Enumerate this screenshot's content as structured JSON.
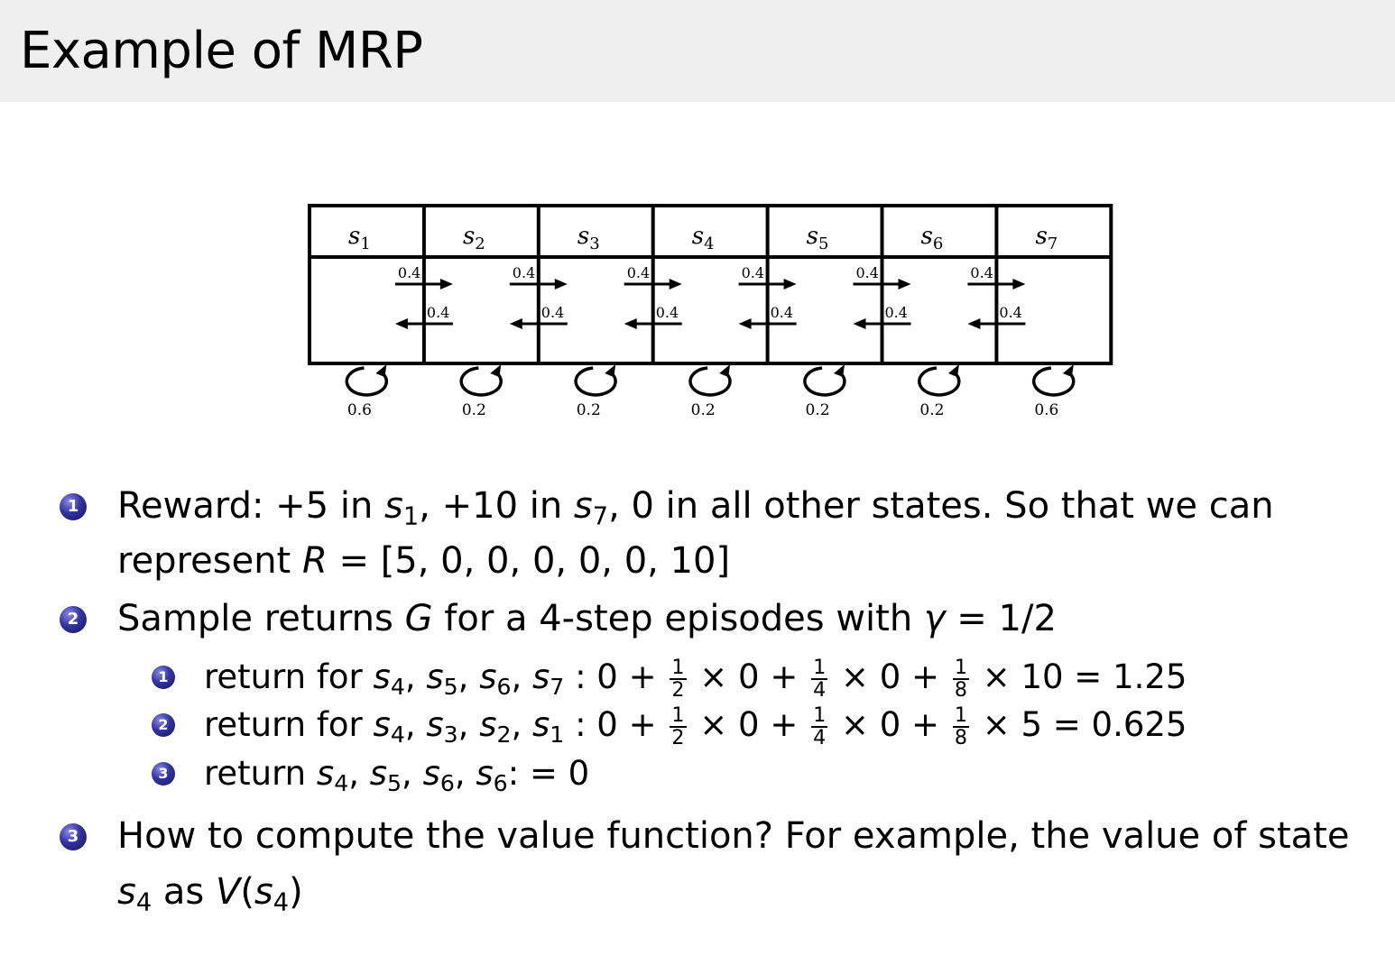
{
  "header": {
    "title": "Example of MRP"
  },
  "diagram": {
    "states": [
      "s1",
      "s2",
      "s3",
      "s4",
      "s5",
      "s6",
      "s7"
    ],
    "forward_prob": "0.4",
    "backward_prob": "0.4",
    "self_loop_probs": [
      "0.6",
      "0.2",
      "0.2",
      "0.2",
      "0.2",
      "0.2",
      "0.6"
    ]
  },
  "bullet_color": "#2a2a8a",
  "items": [
    {
      "number": "1",
      "lines": [
        [
          {
            "t": "Reward: +5 in "
          },
          {
            "m": "s"
          },
          {
            "s": "1"
          },
          {
            "t": ", +10 in "
          },
          {
            "m": "s"
          },
          {
            "s": "7"
          },
          {
            "t": ", 0 in all other states. So that we can"
          }
        ],
        [
          {
            "t": "represent "
          },
          {
            "m": "R"
          },
          {
            "t": " = [5, 0, 0, 0, 0, 0, 10]"
          }
        ]
      ]
    },
    {
      "number": "2",
      "lines": [
        [
          {
            "t": "Sample returns "
          },
          {
            "m": "G"
          },
          {
            "t": " for a 4-step episodes with "
          },
          {
            "m": "γ"
          },
          {
            "t": " = 1/2"
          }
        ]
      ],
      "subitems": [
        {
          "number": "1",
          "line": [
            {
              "t": "return for "
            },
            {
              "m": "s"
            },
            {
              "s": "4"
            },
            {
              "t": ", "
            },
            {
              "m": "s"
            },
            {
              "s": "5"
            },
            {
              "t": ", "
            },
            {
              "m": "s"
            },
            {
              "s": "6"
            },
            {
              "t": ", "
            },
            {
              "m": "s"
            },
            {
              "s": "7"
            },
            {
              "t": " : 0 + "
            },
            {
              "f": [
                "1",
                "2"
              ]
            },
            {
              "t": " × 0 + "
            },
            {
              "f": [
                "1",
                "4"
              ]
            },
            {
              "t": " × 0 + "
            },
            {
              "f": [
                "1",
                "8"
              ]
            },
            {
              "t": " × 10 = 1.25"
            }
          ]
        },
        {
          "number": "2",
          "line": [
            {
              "t": "return for "
            },
            {
              "m": "s"
            },
            {
              "s": "4"
            },
            {
              "t": ", "
            },
            {
              "m": "s"
            },
            {
              "s": "3"
            },
            {
              "t": ", "
            },
            {
              "m": "s"
            },
            {
              "s": "2"
            },
            {
              "t": ", "
            },
            {
              "m": "s"
            },
            {
              "s": "1"
            },
            {
              "t": " : 0 + "
            },
            {
              "f": [
                "1",
                "2"
              ]
            },
            {
              "t": " × 0 + "
            },
            {
              "f": [
                "1",
                "4"
              ]
            },
            {
              "t": " × 0 + "
            },
            {
              "f": [
                "1",
                "8"
              ]
            },
            {
              "t": " × 5 = 0.625"
            }
          ]
        },
        {
          "number": "3",
          "line": [
            {
              "t": "return "
            },
            {
              "m": "s"
            },
            {
              "s": "4"
            },
            {
              "t": ", "
            },
            {
              "m": "s"
            },
            {
              "s": "5"
            },
            {
              "t": ", "
            },
            {
              "m": "s"
            },
            {
              "s": "6"
            },
            {
              "t": ", "
            },
            {
              "m": "s"
            },
            {
              "s": "6"
            },
            {
              "t": ": = 0"
            }
          ]
        }
      ]
    },
    {
      "number": "3",
      "lines": [
        [
          {
            "t": "How to compute the value function? For example, the value of state"
          }
        ],
        [
          {
            "m": "s"
          },
          {
            "s": "4"
          },
          {
            "t": " as "
          },
          {
            "m": "V"
          },
          {
            "t": "("
          },
          {
            "m": "s"
          },
          {
            "s": "4"
          },
          {
            "t": ")"
          }
        ]
      ]
    }
  ]
}
